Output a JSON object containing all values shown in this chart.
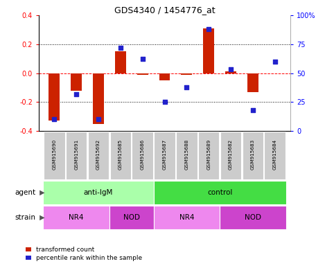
{
  "title": "GDS4340 / 1454776_at",
  "samples": [
    "GSM915690",
    "GSM915691",
    "GSM915692",
    "GSM915685",
    "GSM915686",
    "GSM915687",
    "GSM915688",
    "GSM915689",
    "GSM915682",
    "GSM915683",
    "GSM915684"
  ],
  "red_values": [
    -0.33,
    -0.12,
    -0.35,
    0.15,
    -0.01,
    -0.05,
    -0.01,
    0.31,
    0.01,
    -0.13,
    0.0
  ],
  "blue_values_pct": [
    10,
    32,
    10,
    72,
    62,
    25,
    38,
    88,
    53,
    18,
    60
  ],
  "ylim_left": [
    -0.4,
    0.4
  ],
  "ylim_right": [
    0,
    100
  ],
  "yticks_left": [
    -0.4,
    -0.2,
    0.0,
    0.2,
    0.4
  ],
  "yticks_right": [
    0,
    25,
    50,
    75,
    100
  ],
  "ytick_labels_right": [
    "0",
    "25",
    "50",
    "75",
    "100%"
  ],
  "dotted_lines": [
    -0.2,
    0.2
  ],
  "agent_groups": [
    {
      "label": "anti-IgM",
      "start": 0,
      "end": 5,
      "color": "#aaffaa"
    },
    {
      "label": "control",
      "start": 5,
      "end": 11,
      "color": "#44dd44"
    }
  ],
  "strain_groups": [
    {
      "label": "NR4",
      "start": 0,
      "end": 3,
      "color": "#ee88ee"
    },
    {
      "label": "NOD",
      "start": 3,
      "end": 5,
      "color": "#cc44cc"
    },
    {
      "label": "NR4",
      "start": 5,
      "end": 8,
      "color": "#ee88ee"
    },
    {
      "label": "NOD",
      "start": 8,
      "end": 11,
      "color": "#cc44cc"
    }
  ],
  "bar_width": 0.5,
  "red_color": "#cc2200",
  "blue_color": "#2222cc",
  "background_color": "#ffffff",
  "legend_red": "transformed count",
  "legend_blue": "percentile rank within the sample",
  "agent_label": "agent",
  "strain_label": "strain",
  "sample_box_color": "#cccccc",
  "sample_text_color": "#000000"
}
